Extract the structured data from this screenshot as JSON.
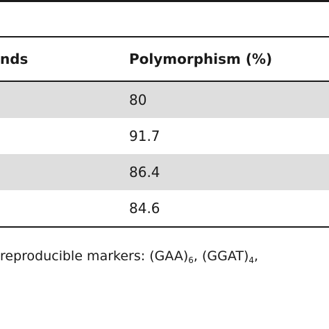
{
  "table": {
    "headers": [
      "nds",
      "Polymorphism (%)"
    ],
    "rows": [
      {
        "polymorphism": "80"
      },
      {
        "polymorphism": "91.7"
      },
      {
        "polymorphism": "86.4"
      },
      {
        "polymorphism": "84.6"
      }
    ]
  },
  "footnote": {
    "text": "reproducible markers: (GAA)",
    "sub1": "6",
    "sep1": ", (GGAT)",
    "sub2": "4",
    "tail": ","
  }
}
